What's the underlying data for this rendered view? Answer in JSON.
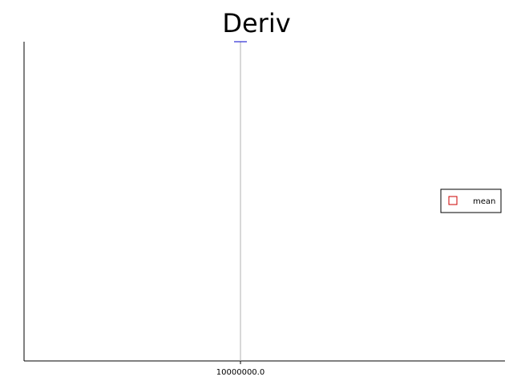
{
  "chart_data": {
    "type": "bar",
    "title": "Deriv",
    "xlabel": "",
    "ylabel": "",
    "categories": [
      "10000000.0"
    ],
    "series": [
      {
        "name": "mean",
        "values": [
          0
        ]
      }
    ],
    "legend": {
      "placement": "right",
      "entries": [
        "mean"
      ]
    },
    "grid": false,
    "colors": {
      "axis": "#000000",
      "bar": "#9e9e9e",
      "error_bar": "#0000cc",
      "legend_marker": "#cc0000"
    }
  }
}
